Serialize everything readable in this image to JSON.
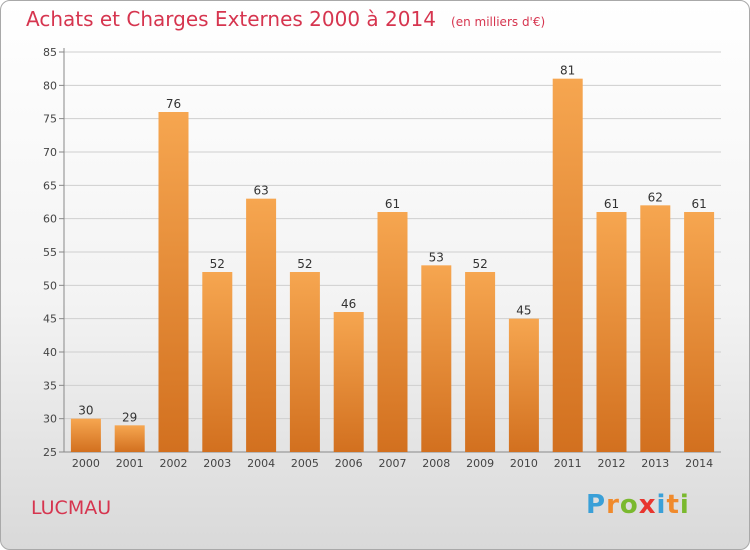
{
  "header": {
    "title": "Achats et Charges Externes 2000 à 2014",
    "unit_note": "(en milliers d'€)"
  },
  "footer": {
    "commune": "LUCMAU",
    "brand": [
      "P",
      "r",
      "o",
      "x",
      "i",
      "t",
      "i"
    ],
    "brand_colors": [
      "#3aa0d8",
      "#f08a2c",
      "#7ab92e",
      "#e8352e",
      "#3aa0d8",
      "#f08a2c",
      "#7ab92e"
    ]
  },
  "colors": {
    "bar_light": "#f6a650",
    "bar_dark": "#d2701f",
    "grid": "#cfcfcf",
    "axis_text": "#444444"
  },
  "chart_data": {
    "type": "bar",
    "title": "Achats et Charges Externes 2000 à 2014",
    "subtitle": "(en milliers d'€)",
    "categories": [
      "2000",
      "2001",
      "2002",
      "2003",
      "2004",
      "2005",
      "2006",
      "2007",
      "2008",
      "2009",
      "2010",
      "2011",
      "2012",
      "2013",
      "2014"
    ],
    "values": [
      30,
      29,
      76,
      52,
      63,
      52,
      46,
      61,
      53,
      52,
      45,
      81,
      61,
      62,
      61
    ],
    "ylim": [
      25,
      85
    ],
    "yticks": [
      25,
      30,
      35,
      40,
      45,
      50,
      55,
      60,
      65,
      70,
      75,
      80,
      85
    ],
    "grid": true,
    "data_labels": true
  }
}
